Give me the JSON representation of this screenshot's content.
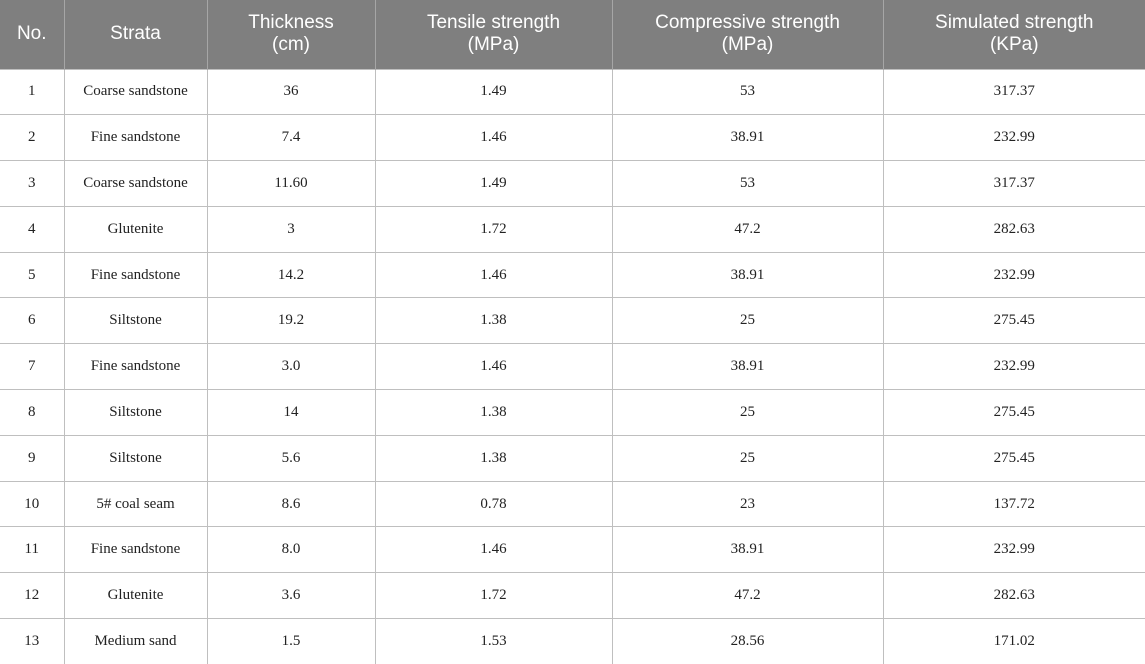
{
  "table": {
    "headers": [
      [
        "No."
      ],
      [
        "Strata"
      ],
      [
        "Thickness",
        "(cm)"
      ],
      [
        "Tensile strength",
        "(MPa)"
      ],
      [
        "Compressive strength",
        "(MPa)"
      ],
      [
        "Simulated strength",
        "(KPa)"
      ]
    ],
    "rows": [
      [
        "1",
        "Coarse sandstone",
        "36",
        "1.49",
        "53",
        "317.37"
      ],
      [
        "2",
        "Fine sandstone",
        "7.4",
        "1.46",
        "38.91",
        "232.99"
      ],
      [
        "3",
        "Coarse sandstone",
        "11.60",
        "1.49",
        "53",
        "317.37"
      ],
      [
        "4",
        "Glutenite",
        "3",
        "1.72",
        "47.2",
        "282.63"
      ],
      [
        "5",
        "Fine sandstone",
        "14.2",
        "1.46",
        "38.91",
        "232.99"
      ],
      [
        "6",
        "Siltstone",
        "19.2",
        "1.38",
        "25",
        "275.45"
      ],
      [
        "7",
        "Fine sandstone",
        "3.0",
        "1.46",
        "38.91",
        "232.99"
      ],
      [
        "8",
        "Siltstone",
        "14",
        "1.38",
        "25",
        "275.45"
      ],
      [
        "9",
        "Siltstone",
        "5.6",
        "1.38",
        "25",
        "275.45"
      ],
      [
        "10",
        "5# coal seam",
        "8.6",
        "0.78",
        "23",
        "137.72"
      ],
      [
        "11",
        "Fine sandstone",
        "8.0",
        "1.46",
        "38.91",
        "232.99"
      ],
      [
        "12",
        "Glutenite",
        "3.6",
        "1.72",
        "47.2",
        "282.63"
      ],
      [
        "13",
        "Medium sand",
        "1.5",
        "1.53",
        "28.56",
        "171.02"
      ]
    ]
  }
}
